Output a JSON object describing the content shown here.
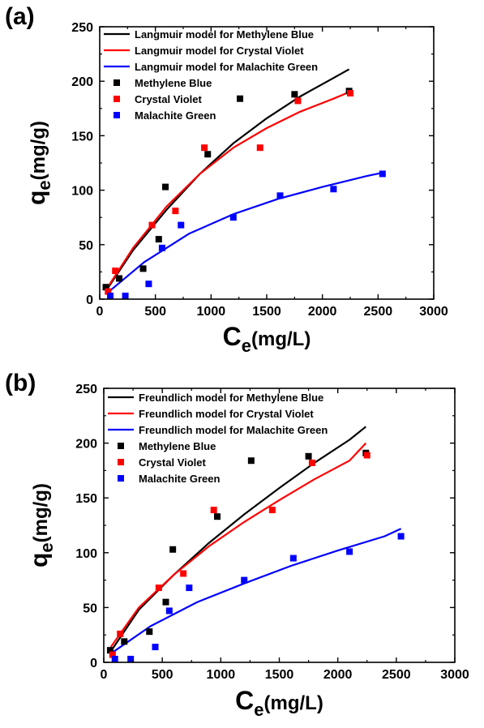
{
  "chart_data": [
    {
      "type": "scatter",
      "panel_label": "(a)",
      "xlabel": {
        "main": "C",
        "sub": "e",
        "unit": "(mg/L)"
      },
      "ylabel": {
        "main": "q",
        "sub": "e",
        "unit": "(mg/g)"
      },
      "xlim": [
        0,
        3000
      ],
      "ylim": [
        0,
        250
      ],
      "xticks": [
        0,
        500,
        1000,
        1500,
        2000,
        2500,
        3000
      ],
      "yticks": [
        0,
        50,
        100,
        150,
        200,
        250
      ],
      "legend_position": "top-left",
      "legend": [
        {
          "label": "Langmuir model for Methylene Blue",
          "kind": "line",
          "color": "#000000"
        },
        {
          "label": "Langmuir model for Crystal Violet",
          "kind": "line",
          "color": "#ff0000"
        },
        {
          "label": "Langmuir model for Malachite Green",
          "kind": "line",
          "color": "#0000ff"
        },
        {
          "label": "Methylene Blue",
          "kind": "marker",
          "color": "#000000"
        },
        {
          "label": "Crystal Violet",
          "kind": "marker",
          "color": "#ff0000"
        },
        {
          "label": "Malachite Green",
          "kind": "marker",
          "color": "#0000ff"
        }
      ],
      "series": [
        {
          "name": "Methylene Blue",
          "color": "#000000",
          "x": [
            55,
            175,
            390,
            530,
            590,
            970,
            1260,
            1750,
            2240
          ],
          "y": [
            11,
            19,
            28,
            55,
            103,
            133,
            184,
            188,
            191
          ]
        },
        {
          "name": "Crystal Violet",
          "color": "#ff0000",
          "x": [
            75,
            140,
            470,
            680,
            940,
            1440,
            1780,
            2250
          ],
          "y": [
            7,
            26,
            68,
            81,
            139,
            139,
            182,
            189
          ]
        },
        {
          "name": "Malachite Green",
          "color": "#0000ff",
          "x": [
            95,
            230,
            440,
            560,
            730,
            1200,
            1620,
            2100,
            2540
          ],
          "y": [
            3,
            3,
            14,
            47,
            68,
            75,
            95,
            101,
            115
          ]
        }
      ],
      "fit_lines": [
        {
          "name": "Langmuir model for Methylene Blue",
          "color": "#000000",
          "x": [
            60,
            300,
            600,
            900,
            1200,
            1500,
            1800,
            2100,
            2240
          ],
          "y": [
            8,
            45,
            82,
            115,
            143,
            166,
            186,
            203,
            211
          ]
        },
        {
          "name": "Langmuir model for Crystal Violet",
          "color": "#ff0000",
          "x": [
            60,
            300,
            600,
            900,
            1200,
            1500,
            1800,
            2100,
            2240
          ],
          "y": [
            9,
            47,
            85,
            115,
            139,
            157,
            172,
            184,
            190
          ]
        },
        {
          "name": "Langmuir model for Malachite Green",
          "color": "#0000ff",
          "x": [
            60,
            400,
            800,
            1200,
            1600,
            2000,
            2400,
            2540
          ],
          "y": [
            5,
            34,
            60,
            78,
            92,
            103,
            113,
            116
          ]
        }
      ]
    },
    {
      "type": "scatter",
      "panel_label": "(b)",
      "xlabel": {
        "main": "C",
        "sub": "e",
        "unit": "(mg/L)"
      },
      "ylabel": {
        "main": "q",
        "sub": "e",
        "unit": "(mg/g)"
      },
      "xlim": [
        0,
        3000
      ],
      "ylim": [
        0,
        250
      ],
      "xticks": [
        0,
        500,
        1000,
        1500,
        2000,
        2500,
        3000
      ],
      "yticks": [
        0,
        50,
        100,
        150,
        200,
        250
      ],
      "legend_position": "top-left",
      "legend": [
        {
          "label": "Freundlich model for Methylene Blue",
          "kind": "line",
          "color": "#000000"
        },
        {
          "label": "Freundlich model for Crystal Violet",
          "kind": "line",
          "color": "#ff0000"
        },
        {
          "label": "Freundlich model for Malachite Green",
          "kind": "line",
          "color": "#0000ff"
        },
        {
          "label": "Methylene Blue",
          "kind": "marker",
          "color": "#000000"
        },
        {
          "label": "Crystal Violet",
          "kind": "marker",
          "color": "#ff0000"
        },
        {
          "label": "Malachite Green",
          "kind": "marker",
          "color": "#0000ff"
        }
      ],
      "series": [
        {
          "name": "Methylene Blue",
          "color": "#000000",
          "x": [
            55,
            175,
            390,
            530,
            590,
            970,
            1260,
            1750,
            2240
          ],
          "y": [
            11,
            19,
            28,
            55,
            103,
            133,
            184,
            188,
            191
          ]
        },
        {
          "name": "Crystal Violet",
          "color": "#ff0000",
          "x": [
            75,
            140,
            470,
            680,
            940,
            1440,
            1780,
            2250
          ],
          "y": [
            7,
            26,
            68,
            81,
            139,
            139,
            182,
            189
          ]
        },
        {
          "name": "Malachite Green",
          "color": "#0000ff",
          "x": [
            95,
            230,
            440,
            560,
            730,
            1200,
            1620,
            2100,
            2540
          ],
          "y": [
            3,
            3,
            14,
            47,
            68,
            75,
            95,
            101,
            115
          ]
        }
      ],
      "fit_lines": [
        {
          "name": "Freundlich model for Methylene Blue",
          "color": "#000000",
          "x": [
            60,
            300,
            600,
            900,
            1200,
            1500,
            1800,
            2100,
            2240
          ],
          "y": [
            10,
            48,
            80,
            109,
            135,
            159,
            182,
            203,
            215
          ]
        },
        {
          "name": "Freundlich model for Crystal Violet",
          "color": "#ff0000",
          "x": [
            60,
            300,
            600,
            900,
            1200,
            1500,
            1800,
            2100,
            2240
          ],
          "y": [
            14,
            50,
            80,
            106,
            128,
            148,
            167,
            184,
            200
          ]
        },
        {
          "name": "Freundlich model for Malachite Green",
          "color": "#0000ff",
          "x": [
            60,
            400,
            800,
            1200,
            1600,
            2000,
            2400,
            2540
          ],
          "y": [
            8,
            33,
            55,
            72,
            88,
            102,
            115,
            122
          ]
        }
      ]
    }
  ]
}
